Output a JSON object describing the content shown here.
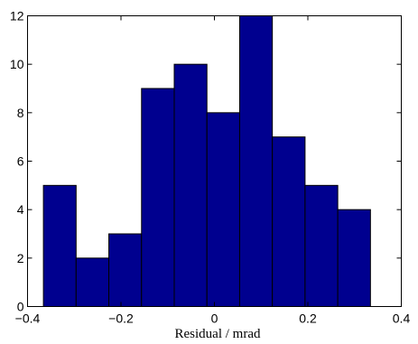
{
  "chart_data": {
    "type": "bar",
    "bins": [
      {
        "from": -0.366,
        "to": -0.296,
        "count": 5
      },
      {
        "from": -0.296,
        "to": -0.226,
        "count": 2
      },
      {
        "from": -0.226,
        "to": -0.156,
        "count": 3
      },
      {
        "from": -0.156,
        "to": -0.086,
        "count": 9
      },
      {
        "from": -0.086,
        "to": -0.016,
        "count": 10
      },
      {
        "from": -0.016,
        "to": 0.054,
        "count": 8
      },
      {
        "from": 0.054,
        "to": 0.124,
        "count": 12
      },
      {
        "from": 0.124,
        "to": 0.194,
        "count": 7
      },
      {
        "from": 0.194,
        "to": 0.264,
        "count": 5
      },
      {
        "from": 0.264,
        "to": 0.334,
        "count": 4
      }
    ],
    "xlabel": "Residual / mrad",
    "ylabel": "",
    "xlim": [
      -0.4,
      0.4
    ],
    "ylim": [
      0,
      12
    ],
    "xticks": [
      -0.4,
      -0.2,
      0,
      0.2,
      0.4
    ],
    "xtick_labels": [
      "−0.4",
      "−0.2",
      "0",
      "0.2",
      "0.4"
    ],
    "yticks": [
      0,
      2,
      4,
      6,
      8,
      10,
      12
    ],
    "ytick_labels": [
      "0",
      "2",
      "4",
      "6",
      "8",
      "10",
      "12"
    ],
    "bar_color": "#00008f",
    "edge_color": "#000000",
    "grid": false
  }
}
